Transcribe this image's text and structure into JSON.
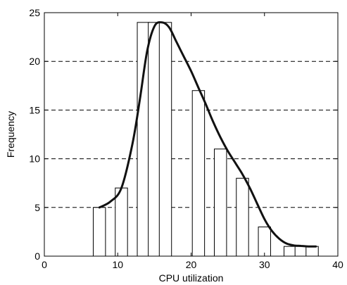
{
  "chart_data": {
    "type": "bar",
    "title": "",
    "xlabel": "CPU utilization",
    "ylabel": "Frequency",
    "xlim": [
      0,
      40
    ],
    "ylim": [
      0,
      25
    ],
    "xticks": [
      0,
      10,
      20,
      30,
      40
    ],
    "yticks": [
      0,
      5,
      10,
      15,
      20,
      25
    ],
    "grid": "horizontal dashed",
    "bin_width": 1.67,
    "bins": [
      {
        "x": 7.5,
        "y": 5
      },
      {
        "x": 10.5,
        "y": 7
      },
      {
        "x": 13.5,
        "y": 24
      },
      {
        "x": 15.0,
        "y": 24
      },
      {
        "x": 16.5,
        "y": 24
      },
      {
        "x": 21.0,
        "y": 17
      },
      {
        "x": 24.0,
        "y": 11
      },
      {
        "x": 27.0,
        "y": 8
      },
      {
        "x": 30.0,
        "y": 3
      },
      {
        "x": 33.5,
        "y": 1
      },
      {
        "x": 35.0,
        "y": 1
      },
      {
        "x": 36.5,
        "y": 1
      }
    ],
    "curve": {
      "x": [
        7.5,
        9,
        10.5,
        12,
        13,
        14,
        15,
        16,
        17,
        18,
        19,
        20,
        21,
        22,
        23,
        24,
        25,
        26,
        27,
        28,
        29,
        30,
        31,
        32,
        33,
        34,
        35,
        36,
        37
      ],
      "y": [
        5,
        5.6,
        7,
        11.5,
        16,
        21,
        23.6,
        24,
        23.5,
        22,
        20.5,
        19,
        17.3,
        15.6,
        13.8,
        12.2,
        10.8,
        9.6,
        8.4,
        7,
        5.4,
        3.8,
        2.6,
        1.8,
        1.3,
        1.1,
        1.05,
        1.0,
        1.0
      ]
    }
  },
  "colors": {
    "bar_fill": "#ffffff",
    "bar_stroke": "#000000",
    "curve": "#111111",
    "grid": "#000000"
  }
}
